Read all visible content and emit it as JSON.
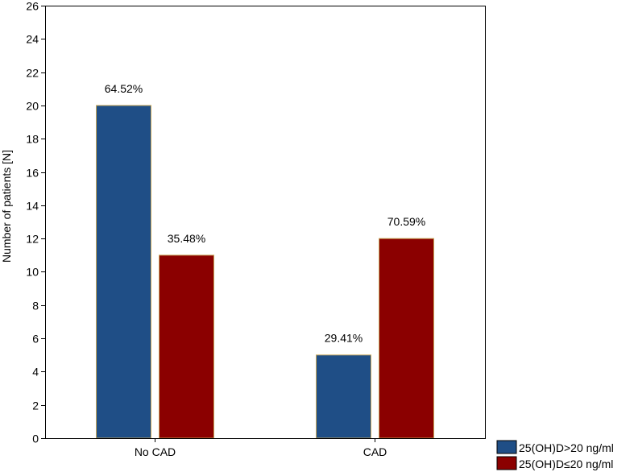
{
  "chart_data": {
    "type": "bar",
    "categories": [
      "No CAD",
      "CAD"
    ],
    "series": [
      {
        "name": "25(OH)D>20 ng/ml",
        "color": "#1f4e86",
        "values": [
          20,
          5
        ],
        "labels": [
          "64.52%",
          "29.41%"
        ]
      },
      {
        "name": "25(OH)D≤​20 ng/ml",
        "color": "#8b0000",
        "values": [
          11,
          12
        ],
        "labels": [
          "35.48%",
          "70.59%"
        ]
      }
    ],
    "title": "",
    "xlabel": "",
    "ylabel": "Number of patients [N]",
    "ylim": [
      0,
      26
    ],
    "yticks": [
      0,
      2,
      4,
      6,
      8,
      10,
      12,
      14,
      16,
      18,
      20,
      22,
      24,
      26
    ],
    "grid": false,
    "legend": "bottom-right"
  }
}
